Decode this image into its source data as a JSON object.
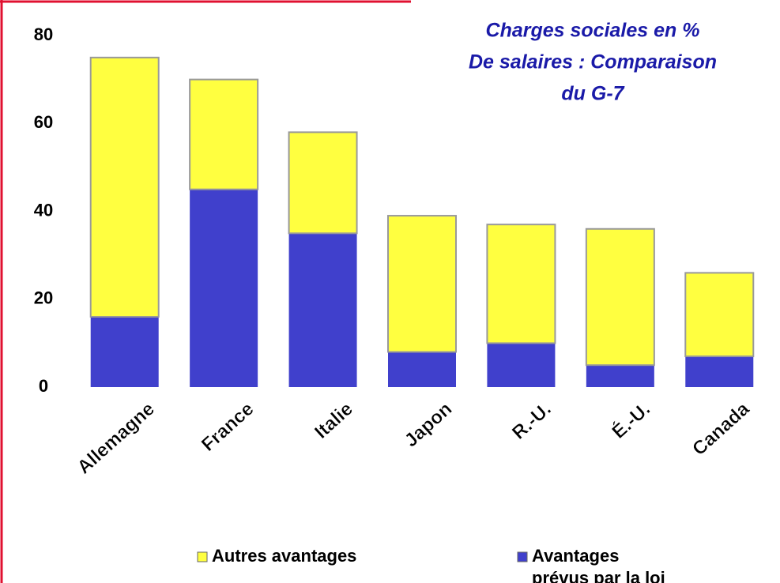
{
  "chart_data": {
    "type": "stacked_bar",
    "title": [
      "Charges sociales en %",
      "De salaires : Comparaison",
      "du G-7"
    ],
    "categories": [
      "Allemagne",
      "France",
      "Italie",
      "Japon",
      "R.-U.",
      "É.-U.",
      "Canada"
    ],
    "series": [
      {
        "name": "Avantages prévus par la loi",
        "color": "#4040cc",
        "values": [
          16,
          45,
          35,
          8,
          10,
          5,
          7
        ]
      },
      {
        "name": "Autres avantages",
        "color": "#ffff40",
        "values": [
          59,
          25,
          23,
          31,
          27,
          31,
          19
        ]
      }
    ],
    "ylim": [
      0,
      80
    ],
    "yticks": [
      0,
      20,
      40,
      60,
      80
    ],
    "legend": "bottom"
  }
}
